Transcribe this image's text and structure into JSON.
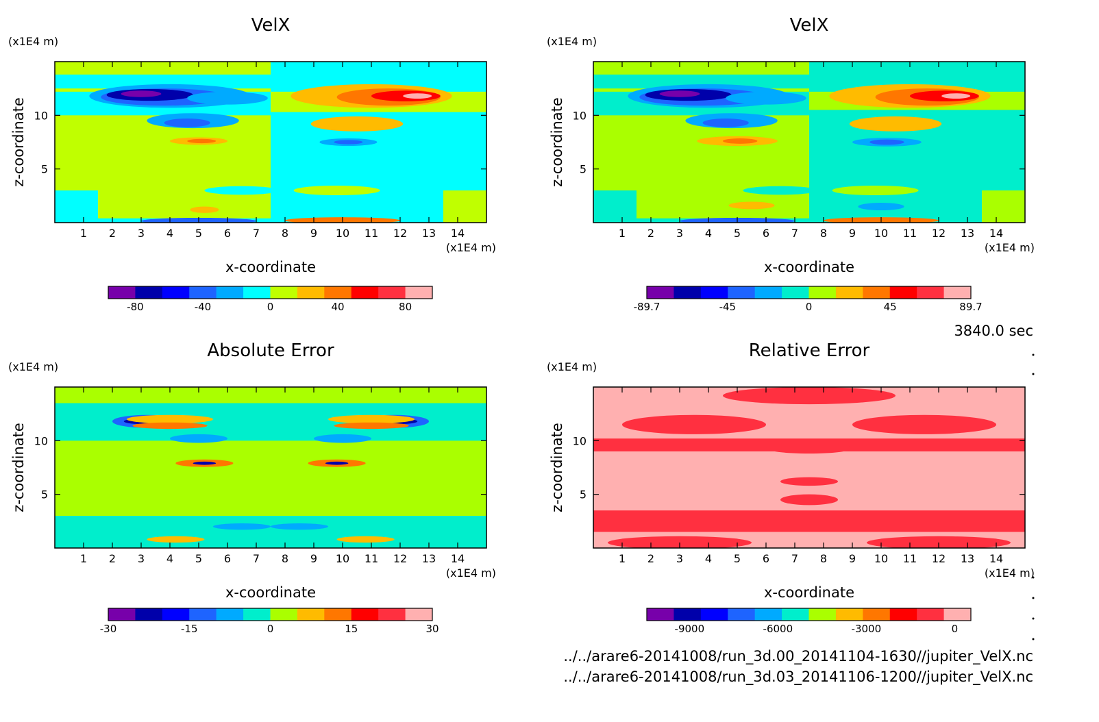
{
  "time_label": "3840.0 sec",
  "file_paths": [
    "../../arare6-20141008/run_3d.00_20141104-1630//jupiter_VelX.nc",
    "../../arare6-20141008/run_3d.03_20141106-1200//jupiter_VelX.nc"
  ],
  "chart_data": [
    {
      "type": "heatmap",
      "title": "VelX",
      "xlabel": "x-coordinate",
      "ylabel": "z-coordinate",
      "x_unit": "(x1E4 m)",
      "y_unit": "(x1E4 m)",
      "xlim": [
        0,
        15
      ],
      "ylim": [
        0,
        15
      ],
      "xticks": [
        1,
        2,
        3,
        4,
        5,
        6,
        7,
        8,
        9,
        10,
        11,
        12,
        13,
        14
      ],
      "yticks": [
        5,
        10
      ],
      "background_level": "0",
      "colorbar": {
        "levels": 12,
        "colors": [
          "#7700aa",
          "#0000aa",
          "#0000ff",
          "#1e64ff",
          "#00aaff",
          "#00ffff",
          "#c0ff00",
          "#ffbb00",
          "#ff7700",
          "#ff0000",
          "#ff3040",
          "#ffb0b0"
        ],
        "tick_labels": [
          "-80",
          "-40",
          "0",
          "40",
          "80"
        ],
        "tick_values": [
          -80,
          -40,
          0,
          40,
          80
        ],
        "range": [
          -96,
          96
        ]
      }
    },
    {
      "type": "heatmap",
      "title": "VelX",
      "xlabel": "x-coordinate",
      "ylabel": "z-coordinate",
      "x_unit": "(x1E4 m)",
      "y_unit": "(x1E4 m)",
      "xlim": [
        0,
        15
      ],
      "ylim": [
        0,
        15
      ],
      "xticks": [
        1,
        2,
        3,
        4,
        5,
        6,
        7,
        8,
        9,
        10,
        11,
        12,
        13,
        14
      ],
      "yticks": [
        5,
        10
      ],
      "background_level": "0",
      "colorbar": {
        "levels": 12,
        "colors": [
          "#7700aa",
          "#0000aa",
          "#0000ff",
          "#1e64ff",
          "#00aaff",
          "#00eecc",
          "#aaff00",
          "#ffbb00",
          "#ff7700",
          "#ff0000",
          "#ff3040",
          "#ffb0b0"
        ],
        "tick_labels": [
          "-89.7",
          "-45",
          "0",
          "45",
          "89.7"
        ],
        "tick_values": [
          -89.7,
          -45,
          0,
          45,
          89.7
        ],
        "range": [
          -89.7,
          89.7
        ]
      }
    },
    {
      "type": "heatmap",
      "title": "Absolute Error",
      "xlabel": "x-coordinate",
      "ylabel": "z-coordinate",
      "x_unit": "(x1E4 m)",
      "y_unit": "(x1E4 m)",
      "xlim": [
        0,
        15
      ],
      "ylim": [
        0,
        15
      ],
      "xticks": [
        1,
        2,
        3,
        4,
        5,
        6,
        7,
        8,
        9,
        10,
        11,
        12,
        13,
        14
      ],
      "yticks": [
        5,
        10
      ],
      "background_level": "0",
      "colorbar": {
        "levels": 12,
        "colors": [
          "#7700aa",
          "#0000aa",
          "#0000ff",
          "#1e64ff",
          "#00aaff",
          "#00eecc",
          "#aaff00",
          "#ffbb00",
          "#ff7700",
          "#ff0000",
          "#ff3040",
          "#ffb0b0"
        ],
        "tick_labels": [
          "-30",
          "-15",
          "0",
          "15",
          "30"
        ],
        "tick_values": [
          -30,
          -15,
          0,
          15,
          30
        ],
        "range": [
          -30,
          30
        ]
      }
    },
    {
      "type": "heatmap",
      "title": "Relative Error",
      "xlabel": "x-coordinate",
      "ylabel": "z-coordinate",
      "x_unit": "(x1E4 m)",
      "y_unit": "(x1E4 m)",
      "xlim": [
        0,
        15
      ],
      "ylim": [
        0,
        15
      ],
      "xticks": [
        1,
        2,
        3,
        4,
        5,
        6,
        7,
        8,
        9,
        10,
        11,
        12,
        13,
        14
      ],
      "yticks": [
        5,
        10
      ],
      "background_level": "0",
      "colorbar": {
        "levels": 12,
        "colors": [
          "#7700aa",
          "#0000aa",
          "#0000ff",
          "#1e64ff",
          "#00aaff",
          "#00eecc",
          "#aaff00",
          "#ffbb00",
          "#ff7700",
          "#ff0000",
          "#ff3040",
          "#ffb0b0"
        ],
        "tick_labels": [
          "-9000",
          "-6000",
          "-3000",
          "0"
        ],
        "tick_values": [
          -9000,
          -6000,
          -3000,
          0
        ],
        "range": [
          -10450,
          550
        ]
      }
    }
  ]
}
